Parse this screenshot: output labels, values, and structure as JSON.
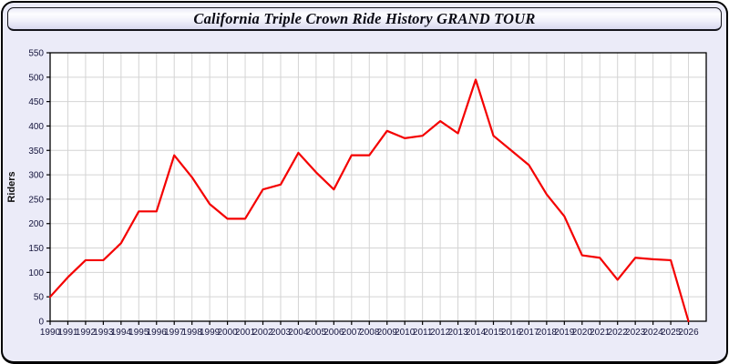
{
  "header": {
    "title": "California Triple Crown Ride History GRAND TOUR"
  },
  "colors": {
    "line": "#f40000",
    "plot_background": "#ffffff",
    "grid": "#d4d4d4",
    "axis": "#000000",
    "tick_label": "#15153d",
    "panel_background": "#ebebf8"
  },
  "chart_data": {
    "type": "line",
    "title": "California Triple Crown Ride History GRAND TOUR",
    "xlabel": "",
    "ylabel": "Riders",
    "x": [
      1990,
      1991,
      1992,
      1993,
      1994,
      1995,
      1996,
      1997,
      1998,
      1999,
      2000,
      2001,
      2002,
      2003,
      2004,
      2005,
      2006,
      2007,
      2008,
      2009,
      2010,
      2011,
      2012,
      2013,
      2014,
      2015,
      2016,
      2017,
      2018,
      2019,
      2020,
      2021,
      2022,
      2023,
      2024,
      2025,
      2026
    ],
    "series": [
      {
        "name": "Riders",
        "color": "#f40000",
        "values": [
          50,
          90,
          125,
          125,
          160,
          225,
          225,
          340,
          295,
          240,
          210,
          210,
          270,
          280,
          345,
          305,
          270,
          340,
          340,
          390,
          375,
          380,
          410,
          385,
          495,
          380,
          350,
          320,
          260,
          215,
          135,
          130,
          85,
          130,
          127,
          125,
          0
        ]
      }
    ],
    "ylim": [
      0,
      550
    ],
    "ytick_step": 50,
    "grid": true,
    "legend_position": "none"
  }
}
